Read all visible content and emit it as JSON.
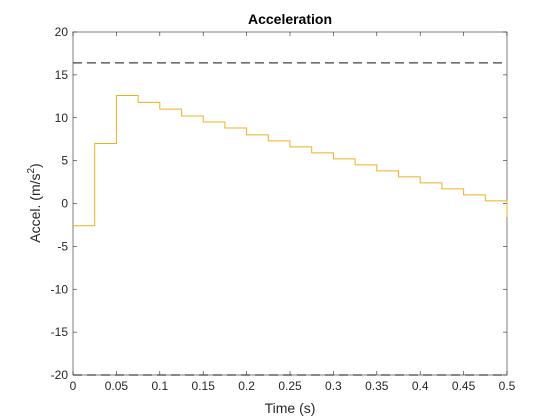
{
  "chart_data": {
    "type": "line",
    "step": true,
    "title": "Acceleration",
    "xlabel": "Time (s)",
    "ylabel_base": "Accel. (m/s",
    "ylabel_sup": "2",
    "ylabel_close": ")",
    "xlim": [
      0,
      0.5
    ],
    "ylim": [
      -20,
      20
    ],
    "xticks": [
      0,
      0.05,
      0.1,
      0.15,
      0.2,
      0.25,
      0.3,
      0.35,
      0.4,
      0.45,
      0.5
    ],
    "xtick_labels": [
      "0",
      "0.05",
      "0.1",
      "0.15",
      "0.2",
      "0.25",
      "0.3",
      "0.35",
      "0.4",
      "0.45",
      "0.5"
    ],
    "yticks": [
      -20,
      -15,
      -10,
      -5,
      0,
      5,
      10,
      15,
      20
    ],
    "ytick_labels": [
      "-20",
      "-15",
      "-10",
      "-5",
      "0",
      "5",
      "10",
      "15",
      "20"
    ],
    "grid": false,
    "series": [
      {
        "color": "#EDB120",
        "x": [
          0,
          0.025,
          0.05,
          0.075,
          0.1,
          0.125,
          0.15,
          0.175,
          0.2,
          0.225,
          0.25,
          0.275,
          0.3,
          0.325,
          0.35,
          0.375,
          0.4,
          0.425,
          0.45,
          0.475,
          0.5
        ],
        "y": [
          -2.6,
          7.0,
          12.6,
          11.8,
          11.0,
          10.2,
          9.5,
          8.8,
          8.0,
          7.3,
          6.6,
          5.9,
          5.2,
          4.5,
          3.8,
          3.1,
          2.4,
          1.7,
          1.0,
          0.3,
          -1.6
        ]
      }
    ],
    "reference_lines": [
      {
        "y": 16.4,
        "color": "#404040",
        "style": "dashed"
      },
      {
        "y": -20,
        "color": "#404040",
        "style": "dashed"
      }
    ]
  }
}
